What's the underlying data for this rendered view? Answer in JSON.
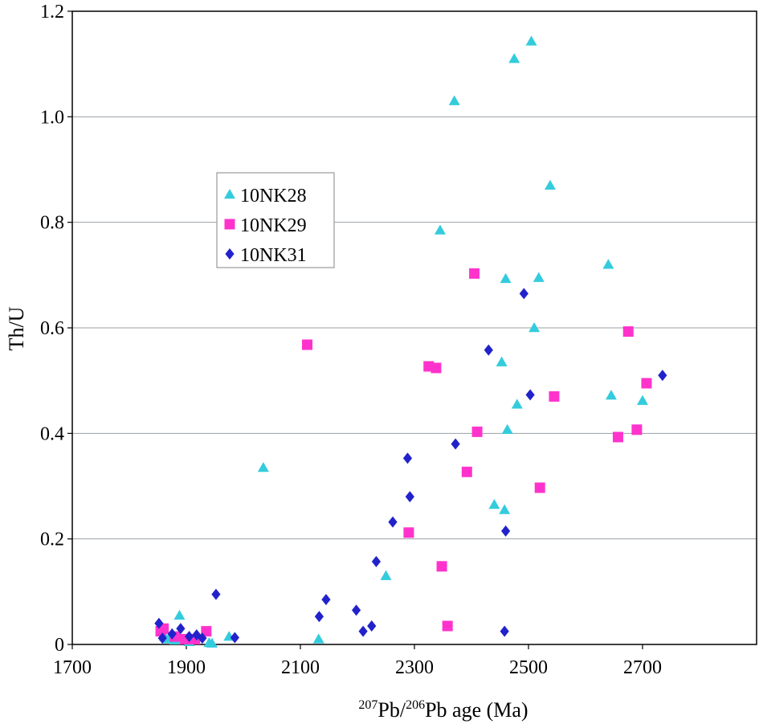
{
  "chart_data": {
    "type": "scatter",
    "title": "",
    "xlabel": {
      "sup1": "207",
      "mid1": "Pb/",
      "sup2": "206",
      "mid2": "Pb age (Ma)"
    },
    "ylabel": "Th/U",
    "xlim": [
      1700,
      2900
    ],
    "ylim": [
      0,
      1.2
    ],
    "x_ticks": [
      {
        "value": 1700,
        "label": "1700"
      },
      {
        "value": 1900,
        "label": "1900"
      },
      {
        "value": 2100,
        "label": "2100"
      },
      {
        "value": 2300,
        "label": "2300"
      },
      {
        "value": 2500,
        "label": "2500"
      },
      {
        "value": 2700,
        "label": "2700"
      }
    ],
    "y_ticks": [
      {
        "value": 0,
        "label": "0"
      },
      {
        "value": 0.2,
        "label": "0.2"
      },
      {
        "value": 0.4,
        "label": "0.4"
      },
      {
        "value": 0.6,
        "label": "0.6"
      },
      {
        "value": 0.8,
        "label": "0.8"
      },
      {
        "value": 1.0,
        "label": "1.0"
      },
      {
        "value": 1.2,
        "label": "1.2"
      }
    ],
    "grid": "horizontal",
    "legend_position": "upper-left",
    "series": [
      {
        "name": "10NK28",
        "marker": "triangle",
        "color": "#33CCDD",
        "points": [
          [
            1862,
            0.015
          ],
          [
            1868,
            0.01
          ],
          [
            1880,
            0.008
          ],
          [
            1888,
            0.055
          ],
          [
            1895,
            0.01
          ],
          [
            1905,
            0.005
          ],
          [
            1940,
            0.003
          ],
          [
            1945,
            0.002
          ],
          [
            1975,
            0.015
          ],
          [
            2035,
            0.335
          ],
          [
            2132,
            0.01
          ],
          [
            2250,
            0.13
          ],
          [
            2345,
            0.785
          ],
          [
            2370,
            1.03
          ],
          [
            2440,
            0.265
          ],
          [
            2453,
            0.535
          ],
          [
            2458,
            0.255
          ],
          [
            2460,
            0.693
          ],
          [
            2463,
            0.407
          ],
          [
            2475,
            1.11
          ],
          [
            2480,
            0.455
          ],
          [
            2505,
            1.143
          ],
          [
            2510,
            0.6
          ],
          [
            2518,
            0.695
          ],
          [
            2538,
            0.87
          ],
          [
            2640,
            0.72
          ],
          [
            2645,
            0.472
          ],
          [
            2700,
            0.462
          ]
        ]
      },
      {
        "name": "10NK29",
        "marker": "square",
        "color": "#FF33CC",
        "points": [
          [
            1855,
            0.025
          ],
          [
            1860,
            0.03
          ],
          [
            1880,
            0.015
          ],
          [
            1898,
            0.01
          ],
          [
            1915,
            0.01
          ],
          [
            1935,
            0.025
          ],
          [
            2112,
            0.568
          ],
          [
            2290,
            0.212
          ],
          [
            2325,
            0.527
          ],
          [
            2338,
            0.524
          ],
          [
            2348,
            0.148
          ],
          [
            2358,
            0.035
          ],
          [
            2392,
            0.327
          ],
          [
            2405,
            0.703
          ],
          [
            2410,
            0.403
          ],
          [
            2520,
            0.297
          ],
          [
            2545,
            0.47
          ],
          [
            2657,
            0.393
          ],
          [
            2675,
            0.593
          ],
          [
            2690,
            0.407
          ],
          [
            2707,
            0.495
          ]
        ]
      },
      {
        "name": "10NK31",
        "marker": "diamond",
        "color": "#2222CC",
        "points": [
          [
            1852,
            0.04
          ],
          [
            1858,
            0.012
          ],
          [
            1875,
            0.02
          ],
          [
            1890,
            0.03
          ],
          [
            1905,
            0.015
          ],
          [
            1918,
            0.018
          ],
          [
            1928,
            0.012
          ],
          [
            1952,
            0.095
          ],
          [
            1985,
            0.013
          ],
          [
            2133,
            0.053
          ],
          [
            2145,
            0.085
          ],
          [
            2198,
            0.065
          ],
          [
            2210,
            0.025
          ],
          [
            2225,
            0.035
          ],
          [
            2233,
            0.157
          ],
          [
            2262,
            0.232
          ],
          [
            2288,
            0.353
          ],
          [
            2292,
            0.28
          ],
          [
            2372,
            0.38
          ],
          [
            2430,
            0.558
          ],
          [
            2458,
            0.025
          ],
          [
            2460,
            0.215
          ],
          [
            2492,
            0.665
          ],
          [
            2503,
            0.473
          ],
          [
            2735,
            0.51
          ]
        ]
      }
    ]
  }
}
